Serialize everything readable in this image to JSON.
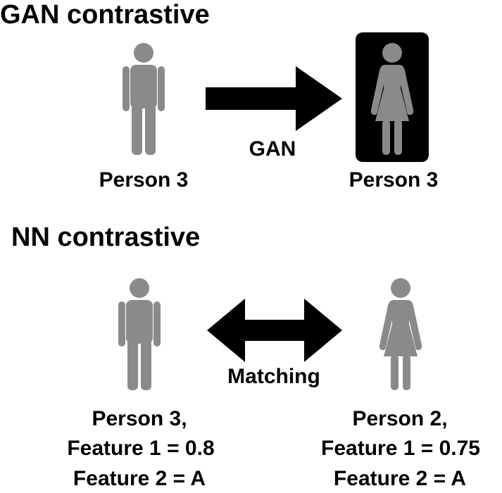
{
  "colors": {
    "figure_gray": "#8a8a8a",
    "arrow": "#000000",
    "highlight_box": "#000000"
  },
  "gan_section": {
    "title": "GAN contrastive",
    "source_label": "Person 3",
    "target_label": "Person 3",
    "arrow_label": "GAN",
    "source_icon": "man-icon",
    "target_icon": "woman-icon"
  },
  "nn_section": {
    "title": "NN contrastive",
    "arrow_label": "Matching",
    "left": {
      "line1": "Person 3,",
      "line2": "Feature 1 = 0.8",
      "line3": "Feature 2 = A",
      "icon": "man-icon"
    },
    "right": {
      "line1": "Person 2,",
      "line2": "Feature 1 = 0.75",
      "line3": "Feature 2 = A",
      "icon": "woman-icon"
    }
  }
}
